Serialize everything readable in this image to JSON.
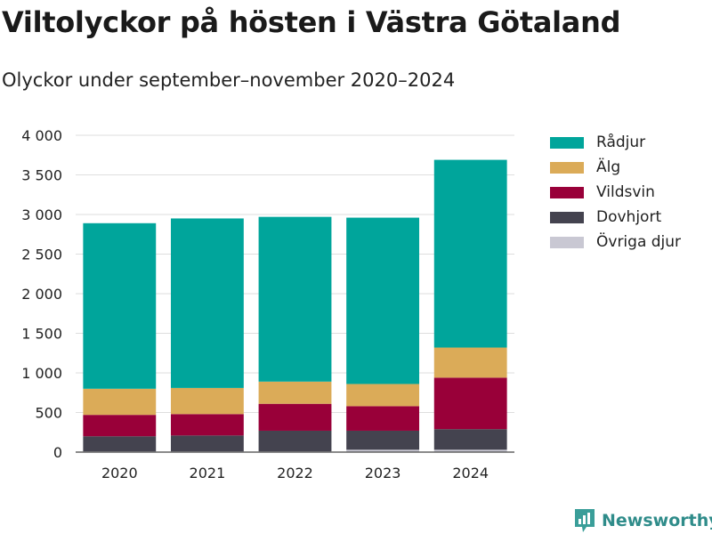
{
  "title": "Viltolyckor på hösten i Västra Götaland",
  "subtitle": "Olyckor under september–november 2020–2024",
  "brand": "Newsworthy",
  "chart_data": {
    "type": "bar",
    "stacked": true,
    "categories": [
      "2020",
      "2021",
      "2022",
      "2023",
      "2024"
    ],
    "series": [
      {
        "name": "Övriga djur",
        "color": "#c9c8d3",
        "values": [
          10,
          10,
          10,
          30,
          30
        ]
      },
      {
        "name": "Dovhjort",
        "color": "#44434f",
        "values": [
          190,
          200,
          260,
          240,
          260
        ]
      },
      {
        "name": "Vildsvin",
        "color": "#990039",
        "values": [
          270,
          270,
          340,
          310,
          650
        ]
      },
      {
        "name": "Älg",
        "color": "#dbab58",
        "values": [
          330,
          330,
          280,
          280,
          380
        ]
      },
      {
        "name": "Rådjur",
        "color": "#00a59b",
        "values": [
          2090,
          2140,
          2080,
          2100,
          2370
        ]
      }
    ],
    "legend_order": [
      "Rådjur",
      "Älg",
      "Vildsvin",
      "Dovhjort",
      "Övriga djur"
    ],
    "ylim": [
      0,
      4000
    ],
    "yticks": [
      0,
      500,
      1000,
      1500,
      2000,
      2500,
      3000,
      3500,
      4000
    ],
    "ytick_labels": [
      "0",
      "500",
      "1 000",
      "1 500",
      "2 000",
      "2 500",
      "3 000",
      "3 500",
      "4 000"
    ],
    "grid": true,
    "legend_position": "right"
  }
}
